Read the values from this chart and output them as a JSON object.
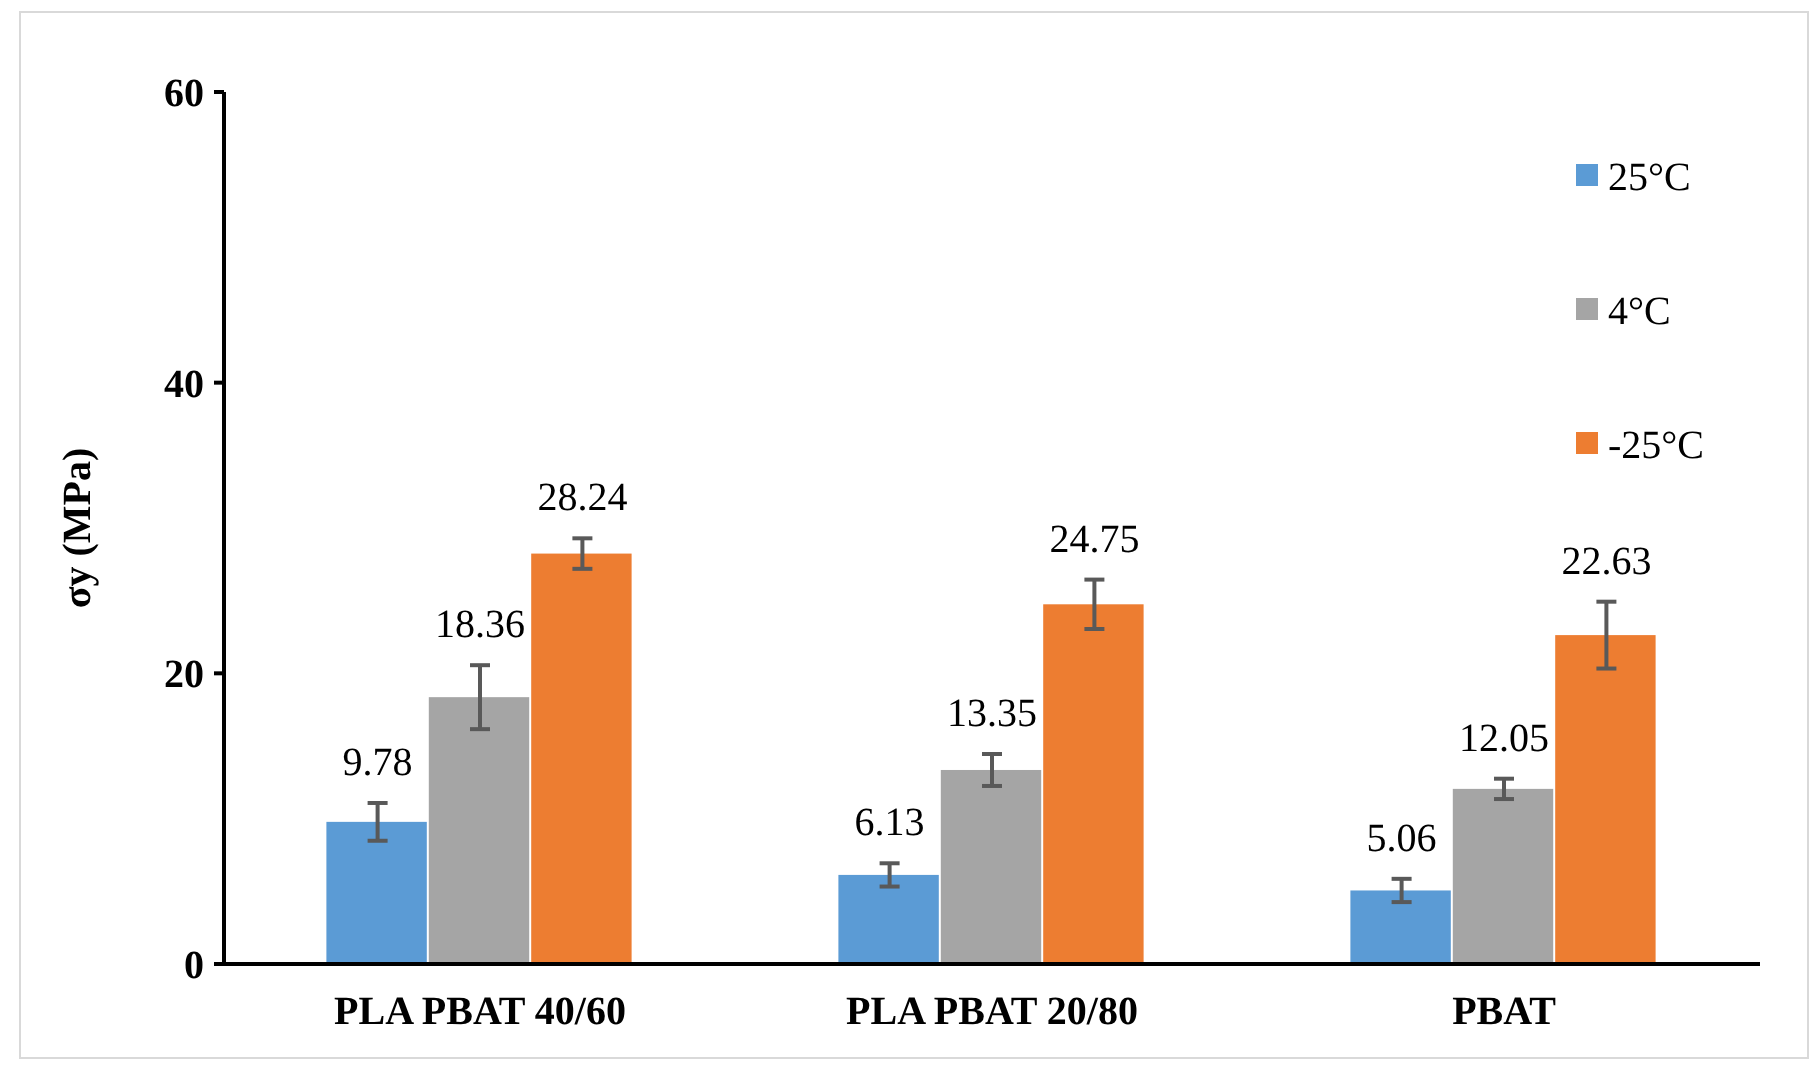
{
  "chart_data": {
    "type": "bar",
    "ylabel": "σy (MPa)",
    "categories": [
      "PLA PBAT 40/60",
      "PLA PBAT 20/80",
      "PBAT"
    ],
    "series": [
      {
        "name": "25°C",
        "color": "#5b9bd5",
        "values": [
          9.78,
          6.13,
          5.06
        ],
        "errors": [
          1.3,
          0.8,
          0.8
        ]
      },
      {
        "name": "4°C",
        "color": "#a5a5a5",
        "values": [
          18.36,
          13.35,
          12.05
        ],
        "errors": [
          2.2,
          1.1,
          0.7
        ]
      },
      {
        "name": "-25°C",
        "color": "#ed7d31",
        "values": [
          28.24,
          24.75,
          22.63
        ],
        "errors": [
          1.05,
          1.7,
          2.3
        ]
      }
    ],
    "ylim": [
      0,
      60
    ],
    "yticks": [
      0,
      20,
      40,
      60
    ],
    "data_labels": true,
    "legend": "top right",
    "grid": false
  }
}
